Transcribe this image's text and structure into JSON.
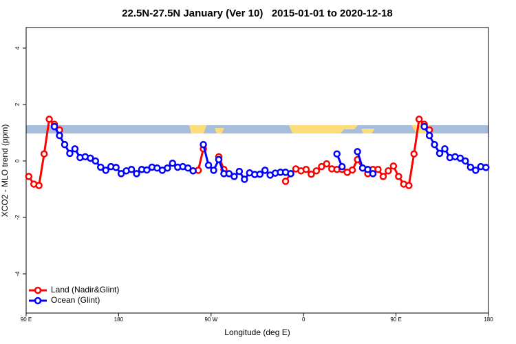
{
  "chart_data": {
    "type": "line",
    "title": "22.5N-27.5N January (Ver 10)   2015-01-01 to 2020-12-18",
    "xlabel": "Longitude (deg E)",
    "ylabel": "XCO2 - MLO trend (ppm)",
    "x": [
      92.5,
      97.5,
      102.5,
      107.5,
      112.5,
      117.5,
      122.5,
      127.5,
      132.5,
      137.5,
      142.5,
      147.5,
      152.5,
      157.5,
      162.5,
      167.5,
      172.5,
      177.5,
      182.5,
      187.5,
      192.5,
      197.5,
      202.5,
      207.5,
      212.5,
      217.5,
      222.5,
      227.5,
      232.5,
      237.5,
      242.5,
      247.5,
      252.5,
      257.5,
      262.5,
      267.5,
      272.5,
      277.5,
      282.5,
      287.5,
      292.5,
      297.5,
      302.5,
      307.5,
      312.5,
      317.5,
      322.5,
      327.5,
      332.5,
      337.5,
      342.5,
      347.5,
      352.5,
      357.5,
      362.5,
      367.5,
      372.5,
      377.5,
      382.5,
      387.5,
      392.5,
      397.5,
      402.5,
      407.5,
      412.5,
      417.5,
      422.5,
      427.5,
      432.5,
      437.5,
      442.5,
      447.5,
      452.5,
      457.5,
      462.5,
      467.5,
      472.5,
      477.5,
      482.5,
      487.5,
      492.5,
      497.5,
      502.5,
      507.5,
      512.5,
      517.5,
      522.5,
      527.5,
      532.5,
      537.5
    ],
    "series": [
      {
        "name": "Land (Nadir&Glint)",
        "color": "#ff0000",
        "values": [
          -0.55,
          -0.82,
          -0.87,
          0.25,
          1.48,
          1.3,
          1.1,
          null,
          null,
          null,
          null,
          null,
          null,
          null,
          null,
          null,
          null,
          null,
          null,
          null,
          null,
          null,
          null,
          null,
          null,
          null,
          null,
          null,
          null,
          null,
          null,
          null,
          -0.35,
          -0.33,
          0.43,
          null,
          null,
          0.15,
          -0.3,
          null,
          null,
          null,
          null,
          null,
          null,
          null,
          null,
          null,
          null,
          null,
          -0.72,
          -0.45,
          -0.28,
          -0.35,
          -0.3,
          -0.47,
          -0.35,
          -0.2,
          -0.1,
          -0.28,
          -0.3,
          -0.3,
          -0.4,
          -0.32,
          0.05,
          -0.25,
          -0.45,
          -0.3,
          -0.3,
          -0.55,
          -0.35,
          -0.18,
          -0.55,
          -0.82,
          -0.87,
          0.25,
          1.48,
          1.3,
          1.1,
          null,
          null,
          null,
          null,
          null,
          null,
          null,
          null,
          null,
          null,
          null
        ]
      },
      {
        "name": "Ocean (Glint)",
        "color": "#0000ff",
        "values": [
          null,
          null,
          null,
          null,
          null,
          1.22,
          0.9,
          0.58,
          0.27,
          0.43,
          0.12,
          0.15,
          0.1,
          0.0,
          -0.22,
          -0.33,
          -0.2,
          -0.23,
          -0.45,
          -0.35,
          -0.3,
          -0.45,
          -0.3,
          -0.32,
          -0.22,
          -0.25,
          -0.33,
          -0.25,
          -0.08,
          -0.22,
          -0.2,
          -0.25,
          -0.35,
          null,
          0.58,
          -0.15,
          -0.33,
          0.05,
          -0.45,
          -0.45,
          -0.55,
          -0.37,
          -0.65,
          -0.42,
          -0.48,
          -0.47,
          -0.33,
          -0.5,
          -0.43,
          -0.4,
          -0.4,
          -0.45,
          null,
          null,
          null,
          null,
          null,
          null,
          null,
          null,
          0.25,
          -0.2,
          null,
          null,
          0.33,
          -0.25,
          -0.3,
          -0.45,
          null,
          null,
          null,
          null,
          null,
          null,
          null,
          null,
          null,
          1.22,
          0.9,
          0.58,
          0.27,
          0.43,
          0.12,
          0.15,
          0.1,
          0.0,
          -0.22,
          -0.33,
          -0.2,
          -0.23
        ]
      }
    ],
    "xlim": [
      90,
      540
    ],
    "xticks": [
      {
        "value": 90,
        "label": "90 E"
      },
      180,
      {
        "value": 270,
        "label": "90 W"
      },
      {
        "value": 360,
        "label": "0"
      },
      {
        "value": 450,
        "label": "90 E"
      },
      {
        "value": 540,
        "label": "180"
      }
    ],
    "ylim": [
      -5.39,
      4.73
    ],
    "yticks": [
      -4,
      -2,
      0,
      2,
      4
    ],
    "legend": "bottom-left"
  }
}
